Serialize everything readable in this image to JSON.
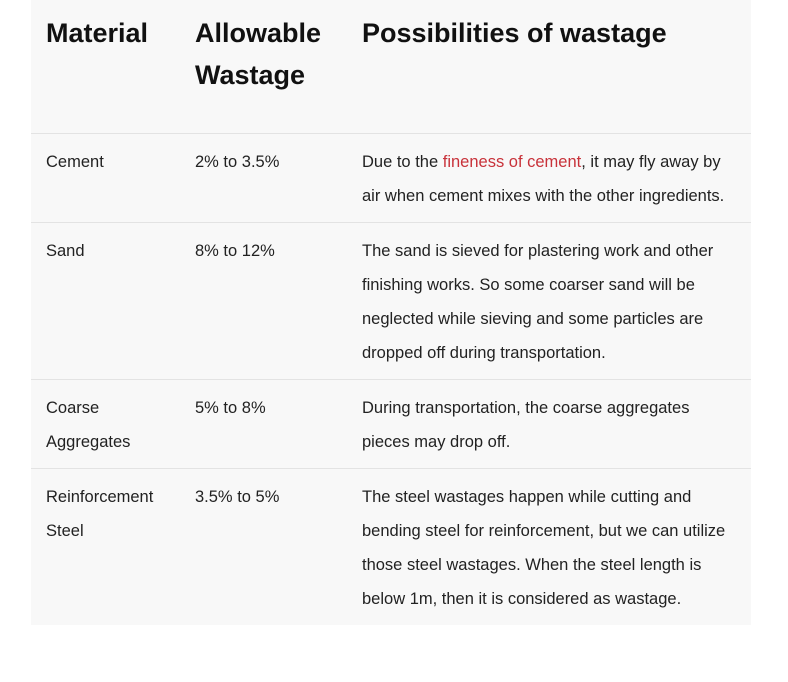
{
  "table": {
    "header": [
      "Material",
      "Allowable Wastage",
      "Possibilities of wastage"
    ],
    "rows": [
      [
        "Cement",
        "2% to 3.5%",
        {
          "before": "Due to the",
          "link": "fineness of cement",
          "after": ", it may fly away by air when cement mixes with the other ingredients."
        }
      ],
      [
        "Sand",
        "8% to 12%",
        "The sand is sieved for plastering work and other finishing works. So some coarser sand will be neglected while sieving and some particles are dropped off during transportation."
      ],
      [
        "Coarse Aggregates",
        "5% to 8%",
        "During transportation, the coarse aggregates pieces may drop off."
      ],
      [
        "Reinforcement Steel",
        "3.5% to 5%",
        "The steel wastages happen while cutting and bending steel for reinforcement, but we can utilize those steel wastages. When the steel length is below 1m, then it is considered as wastage."
      ]
    ]
  }
}
